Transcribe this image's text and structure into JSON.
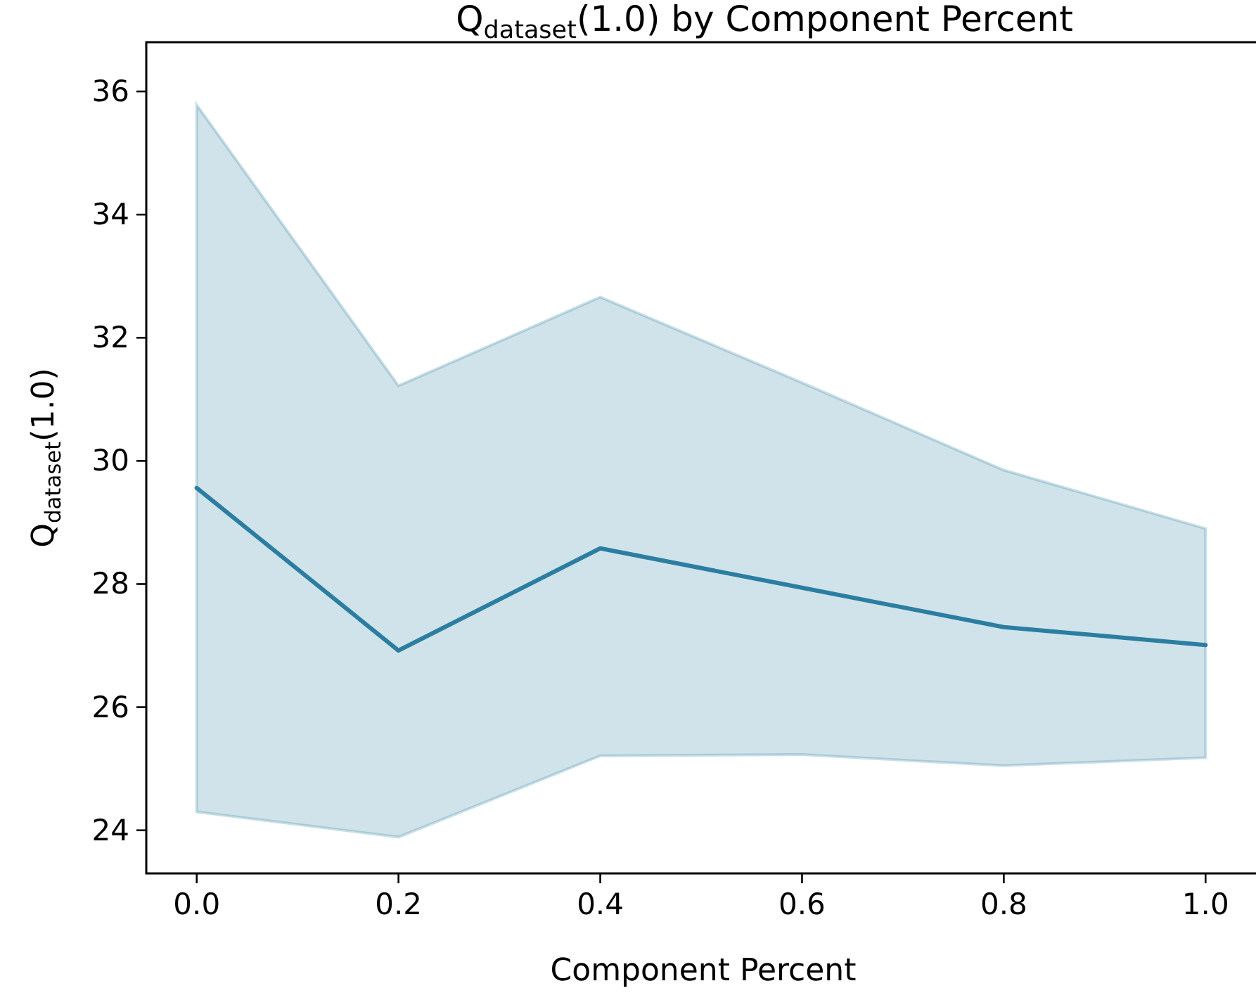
{
  "chart_data": {
    "type": "line",
    "title": "Q$_{dataset}$(1.0) by Component Percent",
    "xlabel": "Component Percent",
    "ylabel": "Q$_{dataset}$(1.0)",
    "x": [
      0,
      0.2,
      0.4,
      0.6,
      0.8,
      1.0
    ],
    "series": [
      {
        "color": "#2b7ea1",
        "values": [
          29.56,
          26.92,
          28.58,
          27.94,
          27.3,
          27.01
        ],
        "lower": [
          24.3,
          23.89,
          25.21,
          25.23,
          25.05,
          25.18
        ],
        "upper": [
          35.78,
          31.22,
          32.66,
          31.27,
          29.85,
          28.9
        ]
      }
    ],
    "xlim": [
      -0.05,
      1.05
    ],
    "ylim": [
      23.3,
      36.8
    ],
    "xticks": [
      {
        "value": 0,
        "label": "0.0"
      },
      {
        "value": 0.2,
        "label": "0.2"
      },
      {
        "value": 0.4,
        "label": "0.4"
      },
      {
        "value": 0.6,
        "label": "0.6"
      },
      {
        "value": 0.8,
        "label": "0.8"
      },
      {
        "value": 1,
        "label": "1.0"
      }
    ],
    "yticks": [
      24,
      26,
      28,
      30,
      32,
      34,
      36
    ],
    "grid": false,
    "marker": "none",
    "line_style": "solid"
  }
}
